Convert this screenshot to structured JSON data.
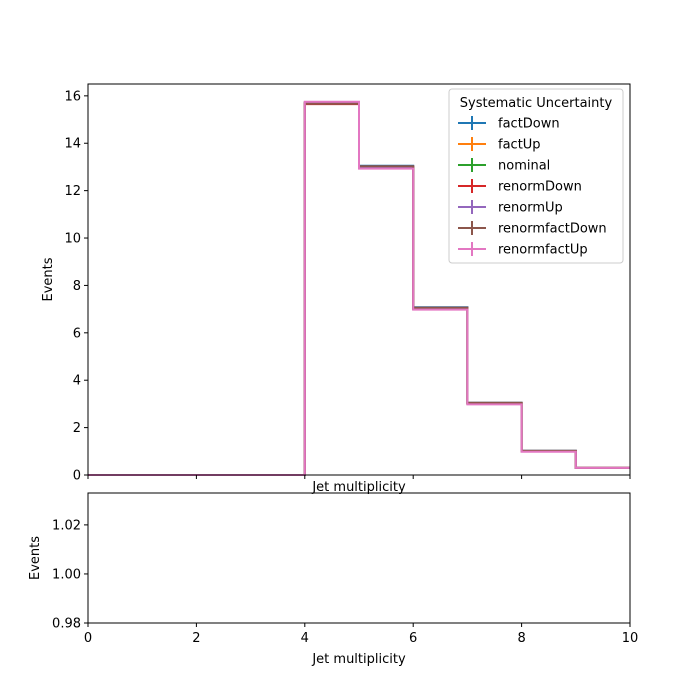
{
  "chart_data": [
    {
      "type": "line",
      "drawstyle": "steps",
      "title": "",
      "xlabel": "Jet multiplicity",
      "ylabel": "Events",
      "xlim": [
        0,
        10
      ],
      "ylim": [
        0,
        16.5
      ],
      "yticks": [
        0,
        2,
        4,
        6,
        8,
        10,
        12,
        14,
        16
      ],
      "grid": false,
      "legend": {
        "title": "Systematic Uncertainty",
        "placement": "top-right"
      },
      "bin_edges": [
        0,
        1,
        2,
        3,
        4,
        5,
        6,
        7,
        8,
        9,
        10
      ],
      "series": [
        {
          "name": "factDown",
          "color": "#1f77b4",
          "values": [
            0,
            0,
            0,
            0,
            15.7,
            13.05,
            7.08,
            3.05,
            1.02,
            0.3
          ]
        },
        {
          "name": "factUp",
          "color": "#ff7f0e",
          "values": [
            0,
            0,
            0,
            0,
            15.72,
            12.95,
            7.0,
            3.0,
            1.0,
            0.3
          ]
        },
        {
          "name": "nominal",
          "color": "#2ca02c",
          "values": [
            0,
            0,
            0,
            0,
            15.7,
            13.0,
            7.03,
            3.02,
            1.0,
            0.3
          ]
        },
        {
          "name": "renormDown",
          "color": "#d62728",
          "values": [
            0,
            0,
            0,
            0,
            15.65,
            13.02,
            7.05,
            3.04,
            1.01,
            0.3
          ]
        },
        {
          "name": "renormUp",
          "color": "#9467bd",
          "values": [
            0,
            0,
            0,
            0,
            15.73,
            12.97,
            7.0,
            3.0,
            0.99,
            0.3
          ]
        },
        {
          "name": "renormfactDown",
          "color": "#8c564b",
          "values": [
            0,
            0,
            0,
            0,
            15.67,
            13.03,
            7.06,
            3.05,
            1.02,
            0.3
          ]
        },
        {
          "name": "renormfactUp",
          "color": "#e377c2",
          "values": [
            0,
            0,
            0,
            0,
            15.75,
            12.93,
            6.98,
            2.98,
            0.98,
            0.3
          ]
        }
      ]
    },
    {
      "type": "line",
      "title": "",
      "xlabel": "Jet multiplicity",
      "ylabel": "Events",
      "xlim": [
        0,
        10
      ],
      "ylim": [
        0.98,
        1.033
      ],
      "xticks": [
        0,
        2,
        4,
        6,
        8,
        10
      ],
      "yticks": [
        0.98,
        1.0,
        1.02
      ],
      "ytick_labels": [
        "0.98",
        "1.00",
        "1.02"
      ],
      "grid": false,
      "series": []
    }
  ]
}
